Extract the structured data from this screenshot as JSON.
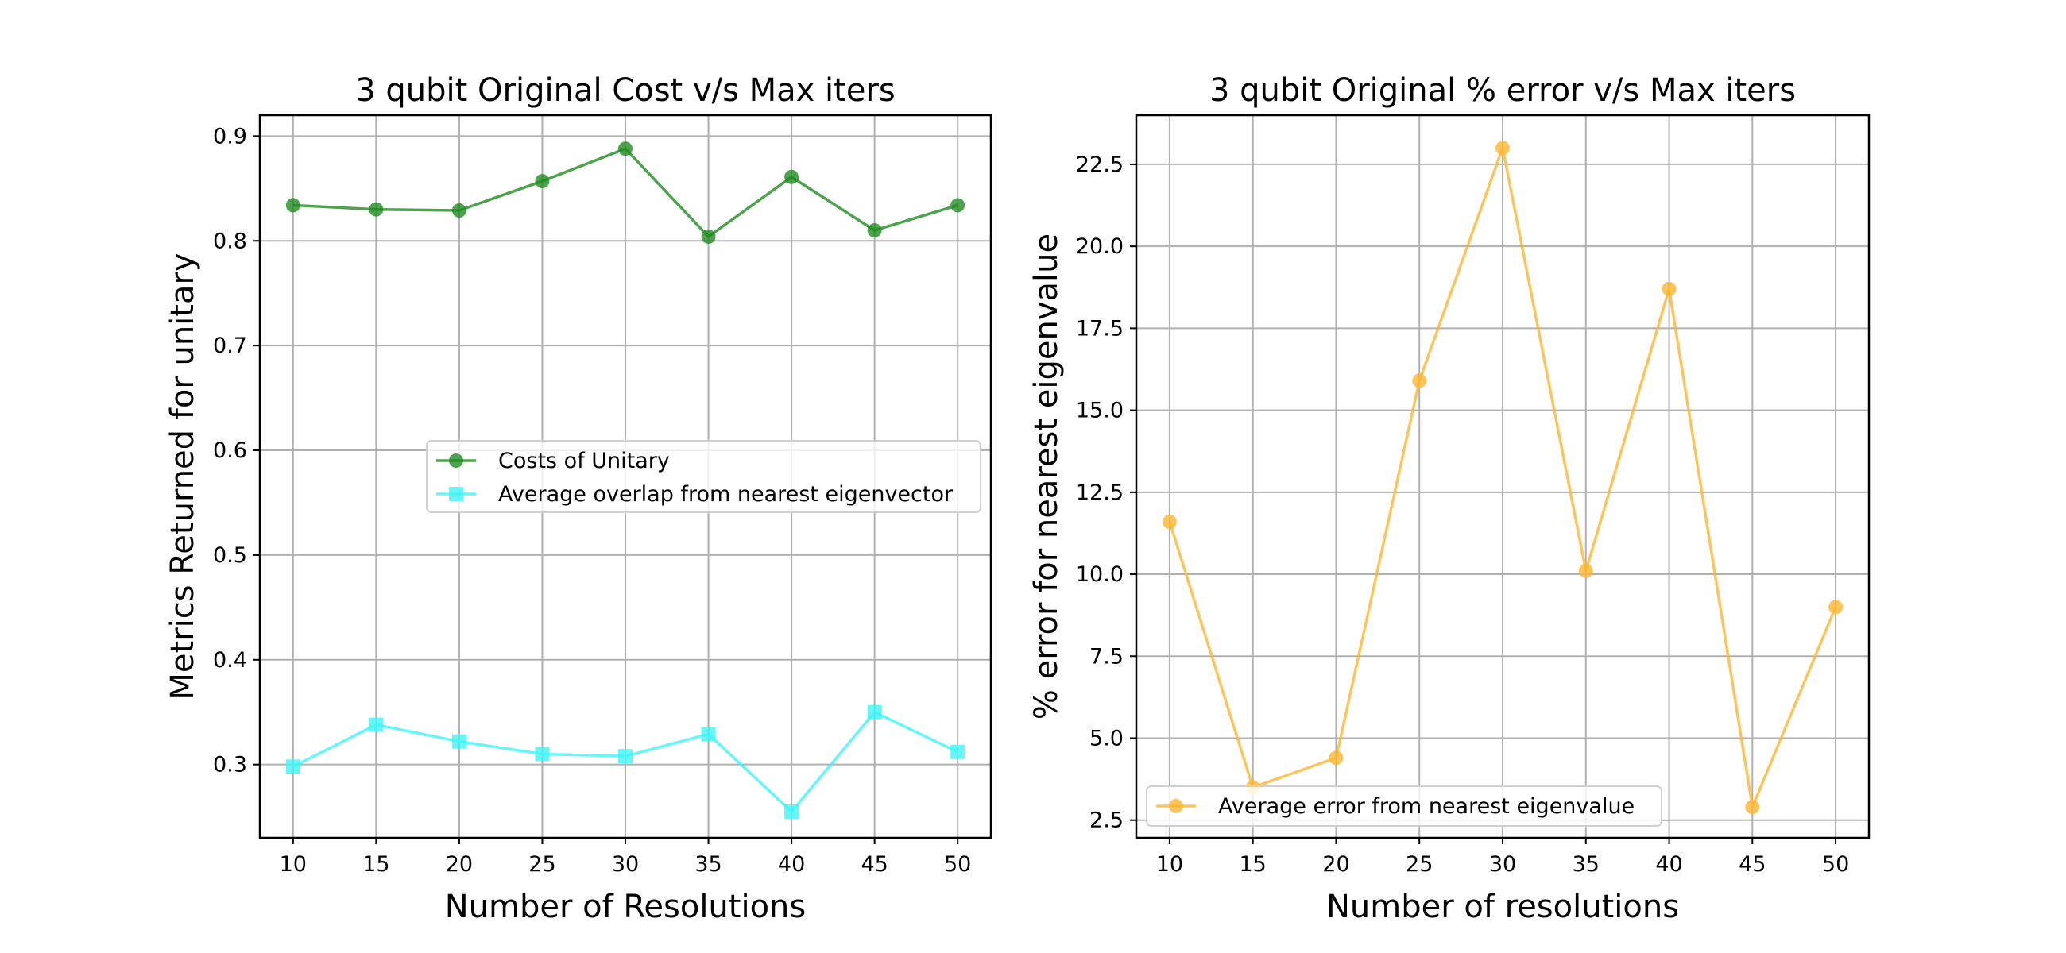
{
  "chart_data": [
    {
      "type": "line",
      "title": "3 qubit Original Cost v/s Max iters",
      "xlabel": "Number of Resolutions",
      "ylabel": "Metrics Returned for unitary",
      "x": [
        10,
        15,
        20,
        25,
        30,
        35,
        40,
        45,
        50
      ],
      "xlim": [
        8,
        52
      ],
      "ylim": [
        0.23,
        0.92
      ],
      "xticks": [
        10,
        15,
        20,
        25,
        30,
        35,
        40,
        45,
        50
      ],
      "yticks": [
        0.3,
        0.4,
        0.5,
        0.6,
        0.7,
        0.8,
        0.9
      ],
      "ytick_labels": [
        "0.3",
        "0.4",
        "0.5",
        "0.6",
        "0.7",
        "0.8",
        "0.9"
      ],
      "grid": true,
      "legend_position": "center-right",
      "series": [
        {
          "name": "Costs of Unitary",
          "marker": "circle",
          "color": "#208b20",
          "values": [
            0.834,
            0.83,
            0.829,
            0.857,
            0.888,
            0.804,
            0.861,
            0.81,
            0.834
          ]
        },
        {
          "name": "Average overlap from nearest eigenvector",
          "marker": "square",
          "color": "#3ff5f5",
          "values": [
            0.298,
            0.338,
            0.322,
            0.31,
            0.308,
            0.329,
            0.255,
            0.35,
            0.312
          ]
        }
      ]
    },
    {
      "type": "line",
      "title": "3 qubit Original % error v/s Max iters",
      "xlabel": "Number of resolutions",
      "ylabel": "% error for nearest eigenvalue",
      "x": [
        10,
        15,
        20,
        25,
        30,
        35,
        40,
        45,
        50
      ],
      "xlim": [
        8,
        52
      ],
      "ylim": [
        1.96,
        24.0
      ],
      "xticks": [
        10,
        15,
        20,
        25,
        30,
        35,
        40,
        45,
        50
      ],
      "yticks": [
        2.5,
        5.0,
        7.5,
        10.0,
        12.5,
        15.0,
        17.5,
        20.0,
        22.5
      ],
      "ytick_labels": [
        "2.5",
        "5.0",
        "7.5",
        "10.0",
        "12.5",
        "15.0",
        "17.5",
        "20.0",
        "22.5"
      ],
      "grid": true,
      "legend_position": "lower-left",
      "series": [
        {
          "name": "Average error from nearest eigenvalue",
          "marker": "circle",
          "color": "#fbb733",
          "values": [
            11.6,
            3.5,
            4.4,
            15.9,
            23.0,
            10.1,
            18.7,
            2.9,
            9.0
          ]
        }
      ]
    }
  ]
}
